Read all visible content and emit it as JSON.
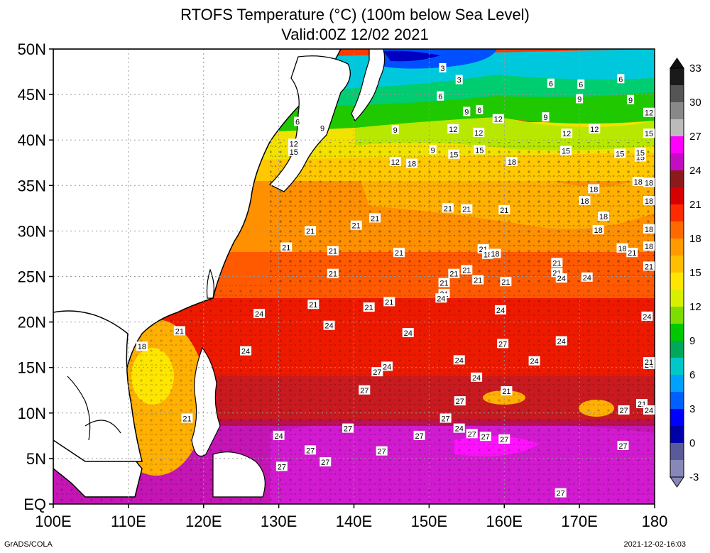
{
  "title": {
    "line1": "RTOFS Temperature (°C) (100m below Sea Level)",
    "line2": "Valid:00Z 12/02 2021"
  },
  "footer": {
    "left": "GrADS/COLA",
    "right": "2021-12-02-16:03"
  },
  "map": {
    "lon_labels": [
      "100E",
      "110E",
      "120E",
      "130E",
      "140E",
      "150E",
      "160E",
      "170E",
      "180"
    ],
    "lat_labels": [
      "EQ",
      "5N",
      "10N",
      "15N",
      "20N",
      "25N",
      "30N",
      "35N",
      "40N",
      "45N",
      "50N"
    ],
    "lon_range": [
      100,
      180
    ],
    "lat_range": [
      0,
      50
    ],
    "grid": "dotted",
    "land_color": "#ffffff",
    "coast_color": "#000000"
  },
  "colorbar": {
    "labels": [
      "33",
      "30",
      "27",
      "24",
      "21",
      "18",
      "15",
      "12",
      "9",
      "6",
      "3",
      "0",
      "-3"
    ],
    "colors": [
      "#1a1a1a",
      "#555555",
      "#888888",
      "#bbbbbb",
      "#ff00ff",
      "#c40cc4",
      "#8b1a1a",
      "#d60000",
      "#ff2a00",
      "#ff6a00",
      "#ff9a00",
      "#ffbf00",
      "#ffe600",
      "#d8f000",
      "#7fdc00",
      "#00c800",
      "#00a85a",
      "#00c8c8",
      "#00a0ff",
      "#0060ff",
      "#0000ff",
      "#0000a8",
      "#5a5a9a",
      "#8888b8"
    ]
  },
  "contour_labels": [
    {
      "t": "3",
      "lon": 151.8,
      "lat": 47.9
    },
    {
      "t": "3",
      "lon": 154.0,
      "lat": 46.6
    },
    {
      "t": "6",
      "lon": 151.5,
      "lat": 44.8
    },
    {
      "t": "6",
      "lon": 166.2,
      "lat": 46.2
    },
    {
      "t": "6",
      "lon": 170.2,
      "lat": 46.1
    },
    {
      "t": "6",
      "lon": 175.5,
      "lat": 46.7
    },
    {
      "t": "9",
      "lon": 170.0,
      "lat": 44.5
    },
    {
      "t": "9",
      "lon": 176.8,
      "lat": 44.4
    },
    {
      "t": "12",
      "lon": 180.0,
      "lat": 43.0
    },
    {
      "t": "9",
      "lon": 155.0,
      "lat": 43.1
    },
    {
      "t": "6",
      "lon": 156.7,
      "lat": 43.3
    },
    {
      "t": "12",
      "lon": 159.2,
      "lat": 42.3
    },
    {
      "t": "9",
      "lon": 165.5,
      "lat": 42.5
    },
    {
      "t": "12",
      "lon": 172.0,
      "lat": 41.2
    },
    {
      "t": "15",
      "lon": 183.8,
      "lat": 40.7
    },
    {
      "t": "6",
      "lon": 132.5,
      "lat": 42.0
    },
    {
      "t": "9",
      "lon": 135.8,
      "lat": 41.3
    },
    {
      "t": "9",
      "lon": 145.5,
      "lat": 41.1
    },
    {
      "t": "12",
      "lon": 153.2,
      "lat": 41.2
    },
    {
      "t": "12",
      "lon": 156.6,
      "lat": 40.8
    },
    {
      "t": "12",
      "lon": 168.3,
      "lat": 40.7
    },
    {
      "t": "12",
      "lon": 132.0,
      "lat": 39.6
    },
    {
      "t": "15",
      "lon": 132.0,
      "lat": 38.7
    },
    {
      "t": "9",
      "lon": 150.5,
      "lat": 38.9
    },
    {
      "t": "15",
      "lon": 153.3,
      "lat": 38.4
    },
    {
      "t": "15",
      "lon": 156.7,
      "lat": 38.9
    },
    {
      "t": "15",
      "lon": 168.2,
      "lat": 38.8
    },
    {
      "t": "15",
      "lon": 175.4,
      "lat": 38.5
    },
    {
      "t": "15",
      "lon": 178.1,
      "lat": 38.1
    },
    {
      "t": "15",
      "lon": 178.1,
      "lat": 38.6
    },
    {
      "t": "12",
      "lon": 145.5,
      "lat": 37.6
    },
    {
      "t": "18",
      "lon": 147.7,
      "lat": 37.4
    },
    {
      "t": "18",
      "lon": 161.0,
      "lat": 37.6
    },
    {
      "t": "18",
      "lon": 177.8,
      "lat": 35.4
    },
    {
      "t": "18",
      "lon": 184.0,
      "lat": 35.3
    },
    {
      "t": "18",
      "lon": 171.9,
      "lat": 34.6
    },
    {
      "t": "18",
      "lon": 170.7,
      "lat": 33.3
    },
    {
      "t": "18",
      "lon": 180.5,
      "lat": 33.3
    },
    {
      "t": "18",
      "lon": 183.8,
      "lat": 33.3
    },
    {
      "t": "21",
      "lon": 152.5,
      "lat": 32.5
    },
    {
      "t": "21",
      "lon": 155.0,
      "lat": 32.4
    },
    {
      "t": "21",
      "lon": 160.0,
      "lat": 32.3
    },
    {
      "t": "18",
      "lon": 173.2,
      "lat": 31.6
    },
    {
      "t": "21",
      "lon": 142.8,
      "lat": 31.4
    },
    {
      "t": "21",
      "lon": 140.3,
      "lat": 30.6
    },
    {
      "t": "18",
      "lon": 181.0,
      "lat": 30.2
    },
    {
      "t": "18",
      "lon": 172.5,
      "lat": 30.1
    },
    {
      "t": "21",
      "lon": 134.2,
      "lat": 30.0
    },
    {
      "t": "21",
      "lon": 131.0,
      "lat": 28.2
    },
    {
      "t": "21",
      "lon": 137.2,
      "lat": 27.8
    },
    {
      "t": "21",
      "lon": 146.0,
      "lat": 27.6
    },
    {
      "t": "21",
      "lon": 157.2,
      "lat": 28.0
    },
    {
      "t": "18",
      "lon": 157.8,
      "lat": 27.4
    },
    {
      "t": "18",
      "lon": 158.8,
      "lat": 27.5
    },
    {
      "t": "18",
      "lon": 181.5,
      "lat": 28.3
    },
    {
      "t": "18",
      "lon": 175.7,
      "lat": 28.1
    },
    {
      "t": "21",
      "lon": 177.0,
      "lat": 27.6
    },
    {
      "t": "21",
      "lon": 167.0,
      "lat": 26.5
    },
    {
      "t": "21",
      "lon": 167.0,
      "lat": 25.4
    },
    {
      "t": "24",
      "lon": 167.6,
      "lat": 24.8
    },
    {
      "t": "24",
      "lon": 171.0,
      "lat": 24.9
    },
    {
      "t": "21",
      "lon": 183.0,
      "lat": 26.1
    },
    {
      "t": "21",
      "lon": 137.2,
      "lat": 25.3
    },
    {
      "t": "21",
      "lon": 153.3,
      "lat": 25.3
    },
    {
      "t": "21",
      "lon": 155.0,
      "lat": 25.7
    },
    {
      "t": "21",
      "lon": 156.5,
      "lat": 24.6
    },
    {
      "t": "21",
      "lon": 160.2,
      "lat": 24.4
    },
    {
      "t": "21",
      "lon": 152.0,
      "lat": 24.3
    },
    {
      "t": "21",
      "lon": 152.0,
      "lat": 23.1
    },
    {
      "t": "24",
      "lon": 151.6,
      "lat": 22.6
    },
    {
      "t": "21",
      "lon": 134.6,
      "lat": 21.9
    },
    {
      "t": "21",
      "lon": 144.7,
      "lat": 22.2
    },
    {
      "t": "21",
      "lon": 142.0,
      "lat": 21.6
    },
    {
      "t": "24",
      "lon": 159.5,
      "lat": 21.3
    },
    {
      "t": "24",
      "lon": 127.4,
      "lat": 20.9
    },
    {
      "t": "24",
      "lon": 179.0,
      "lat": 20.6
    },
    {
      "t": "24",
      "lon": 136.7,
      "lat": 19.6
    },
    {
      "t": "21",
      "lon": 116.8,
      "lat": 19.0
    },
    {
      "t": "24",
      "lon": 147.2,
      "lat": 18.8
    },
    {
      "t": "27",
      "lon": 159.8,
      "lat": 17.6
    },
    {
      "t": "24",
      "lon": 167.6,
      "lat": 17.9
    },
    {
      "t": "18",
      "lon": 111.8,
      "lat": 17.3
    },
    {
      "t": "24",
      "lon": 125.6,
      "lat": 16.8
    },
    {
      "t": "24",
      "lon": 154.0,
      "lat": 15.8
    },
    {
      "t": "24",
      "lon": 164.0,
      "lat": 15.7
    },
    {
      "t": "24",
      "lon": 181.7,
      "lat": 15.3
    },
    {
      "t": "21",
      "lon": 184.2,
      "lat": 15.6
    },
    {
      "t": "24",
      "lon": 144.4,
      "lat": 15.1
    },
    {
      "t": "27",
      "lon": 143.1,
      "lat": 14.5
    },
    {
      "t": "24",
      "lon": 156.3,
      "lat": 13.9
    },
    {
      "t": "27",
      "lon": 141.4,
      "lat": 12.5
    },
    {
      "t": "21",
      "lon": 160.3,
      "lat": 12.4
    },
    {
      "t": "27",
      "lon": 154.1,
      "lat": 11.3
    },
    {
      "t": "21",
      "lon": 178.3,
      "lat": 11.0
    },
    {
      "t": "27",
      "lon": 175.9,
      "lat": 10.3
    },
    {
      "t": "24",
      "lon": 180.0,
      "lat": 10.3
    },
    {
      "t": "21",
      "lon": 117.8,
      "lat": 9.4
    },
    {
      "t": "27",
      "lon": 152.2,
      "lat": 9.4
    },
    {
      "t": "24",
      "lon": 154.0,
      "lat": 8.3
    },
    {
      "t": "27",
      "lon": 139.2,
      "lat": 8.3
    },
    {
      "t": "27",
      "lon": 155.7,
      "lat": 7.7
    },
    {
      "t": "24",
      "lon": 130.0,
      "lat": 7.5
    },
    {
      "t": "27",
      "lon": 148.7,
      "lat": 7.5
    },
    {
      "t": "27",
      "lon": 157.5,
      "lat": 7.4
    },
    {
      "t": "27",
      "lon": 160.0,
      "lat": 7.1
    },
    {
      "t": "27",
      "lon": 175.8,
      "lat": 6.4
    },
    {
      "t": "27",
      "lon": 134.2,
      "lat": 5.9
    },
    {
      "t": "27",
      "lon": 143.7,
      "lat": 5.8
    },
    {
      "t": "27",
      "lon": 136.2,
      "lat": 4.6
    },
    {
      "t": "27",
      "lon": 130.4,
      "lat": 4.1
    },
    {
      "t": "27",
      "lon": 167.5,
      "lat": 1.2
    }
  ]
}
